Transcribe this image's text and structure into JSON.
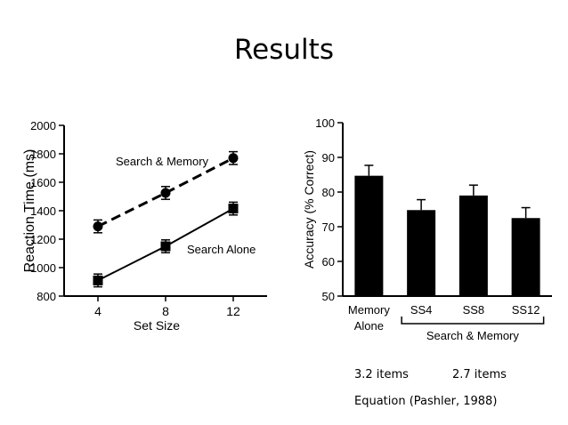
{
  "slide": {
    "title": "Results",
    "notes": [
      "3.2 items",
      "2.7 items",
      "Equation (Pashler, 1988)"
    ]
  },
  "chart_data": [
    {
      "type": "line",
      "xlabel": "Set Size",
      "ylabel": "Reaction Time (ms)",
      "x": [
        4,
        8,
        12
      ],
      "x_ticks": [
        "4",
        "8",
        "12"
      ],
      "ylim": [
        800,
        2000
      ],
      "y_ticks": [
        "800",
        "1000",
        "1200",
        "1400",
        "1600",
        "1800",
        "2000"
      ],
      "grid": false,
      "series": [
        {
          "name": "Search & Memory",
          "values": [
            1290,
            1525,
            1770
          ],
          "errors": [
            45,
            45,
            45
          ],
          "marker": "circle",
          "line": "dashed"
        },
        {
          "name": "Search Alone",
          "values": [
            910,
            1150,
            1415
          ],
          "errors": [
            45,
            45,
            45
          ],
          "marker": "square",
          "line": "solid"
        }
      ]
    },
    {
      "type": "bar",
      "ylabel": "Accuracy (% Correct)",
      "categories": [
        "Memory Alone",
        "SS4",
        "SS8",
        "SS12"
      ],
      "values": [
        84.7,
        74.8,
        79.0,
        72.5
      ],
      "errors": [
        3.0,
        3.0,
        3.0,
        3.0
      ],
      "ylim": [
        50,
        100
      ],
      "y_ticks": [
        "50",
        "60",
        "70",
        "80",
        "90",
        "100"
      ],
      "group_label": "Search & Memory",
      "grid": false
    }
  ]
}
